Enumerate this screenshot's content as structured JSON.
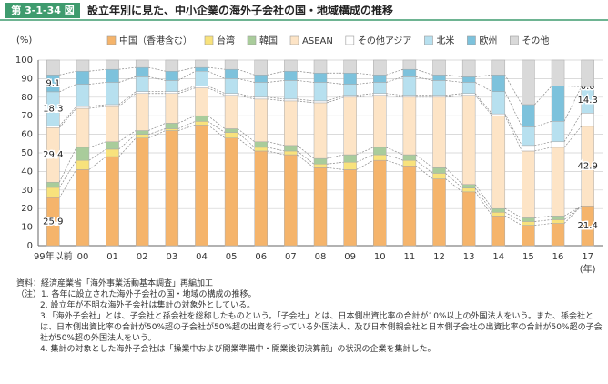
{
  "header": {
    "figure_no": "第 3-1-34 図",
    "title": "設立年別に見た、中小企業の海外子会社の国・地域構成の推移"
  },
  "chart_data": {
    "type": "stacked_bar",
    "y_label": "(%)",
    "x_label": "(年)",
    "categories": [
      "99年以前",
      "00",
      "01",
      "02",
      "03",
      "04",
      "05",
      "06",
      "07",
      "08",
      "09",
      "10",
      "11",
      "12",
      "13",
      "14",
      "15",
      "16",
      "17"
    ],
    "ylim": [
      0,
      100
    ],
    "yticks": [
      0,
      10,
      20,
      30,
      40,
      50,
      60,
      70,
      80,
      90,
      100
    ],
    "grid": true,
    "series": [
      {
        "name": "中国（香港含む）",
        "color": "#f5b46b",
        "values": [
          25.9,
          41,
          48,
          58,
          62,
          65,
          58,
          51,
          49,
          42,
          41,
          46,
          43,
          36,
          29,
          16,
          11,
          12,
          21.4
        ],
        "value_labels": [
          "25.9",
          null,
          null,
          null,
          null,
          null,
          null,
          null,
          null,
          null,
          null,
          null,
          null,
          null,
          null,
          null,
          null,
          null,
          "21.4"
        ]
      },
      {
        "name": "台湾",
        "color": "#f8e27c",
        "values": [
          5.5,
          5,
          4,
          2,
          1,
          2,
          3,
          2,
          2,
          2,
          4,
          3,
          3,
          3,
          2,
          2,
          2,
          2,
          0
        ]
      },
      {
        "name": "韓国",
        "color": "#a9cc9b",
        "values": [
          2.8,
          7,
          4,
          2,
          3,
          3,
          2,
          3,
          3,
          3,
          4,
          4,
          3,
          3,
          2,
          2,
          2,
          2,
          0
        ]
      },
      {
        "name": "ASEAN",
        "color": "#fde4c6",
        "values": [
          29.4,
          21,
          19,
          20,
          16,
          15,
          18,
          23,
          24,
          30,
          31,
          28,
          31,
          38,
          48,
          50,
          36,
          37,
          42.9
        ],
        "value_labels": [
          "29.4",
          null,
          null,
          null,
          null,
          null,
          null,
          null,
          null,
          null,
          null,
          null,
          null,
          null,
          null,
          null,
          null,
          null,
          "42.9"
        ]
      },
      {
        "name": "その他アジア",
        "color": "#ffffff",
        "values": [
          1,
          1,
          1,
          1,
          1,
          1,
          1,
          1,
          1,
          1,
          1,
          1,
          1,
          1,
          1,
          1,
          3,
          3,
          7.1
        ]
      },
      {
        "name": "北米",
        "color": "#b7e0ef",
        "values": [
          18.3,
          12,
          12,
          8,
          6,
          8,
          8,
          8,
          10,
          10,
          6,
          6,
          10,
          8,
          6,
          12,
          10,
          11,
          14.3
        ],
        "value_labels": [
          "18.3",
          null,
          null,
          null,
          null,
          null,
          null,
          null,
          null,
          null,
          null,
          null,
          null,
          null,
          null,
          null,
          null,
          null,
          "14.3"
        ]
      },
      {
        "name": "欧州",
        "color": "#7dc2dc",
        "values": [
          9.1,
          7,
          7,
          5,
          5,
          2,
          5,
          4,
          5,
          5,
          6,
          4,
          4,
          3,
          3,
          9,
          12,
          19,
          0
        ],
        "value_labels": [
          "9.1",
          null,
          null,
          null,
          null,
          null,
          null,
          null,
          null,
          null,
          null,
          null,
          null,
          null,
          null,
          null,
          null,
          null,
          "0.0"
        ]
      },
      {
        "name": "その他",
        "color": "#d9d9d9",
        "values": [
          8,
          6,
          5,
          4,
          6,
          4,
          5,
          8,
          6,
          7,
          7,
          8,
          5,
          8,
          9,
          8,
          24,
          14,
          14.3
        ]
      }
    ]
  },
  "notes": {
    "source": "資料：経済産業省「海外事業活動基本調査」再編加工",
    "items": [
      "（注）1. 各年に設立された海外子会社の国・地域の構成の推移。",
      "2. 設立年が不明な海外子会社は集計の対象外としている。",
      "3.「海外子会社」とは、子会社と孫会社を総称したものという。「子会社」とは、日本側出資比率の合計が10%以上の外国法人をいう。また、孫会社とは、日本側出資比率の合計が50%超の子会社が50%超の出資を行っている外国法人、及び日本側親会社と日本側子会社の出資比率の合計が50%超の子会社が50%超の外国法人をいう。",
      "4. 集計の対象とした海外子会社は「操業中および開業準備中・開業後初決算前」の状況の企業を集計した。"
    ]
  }
}
